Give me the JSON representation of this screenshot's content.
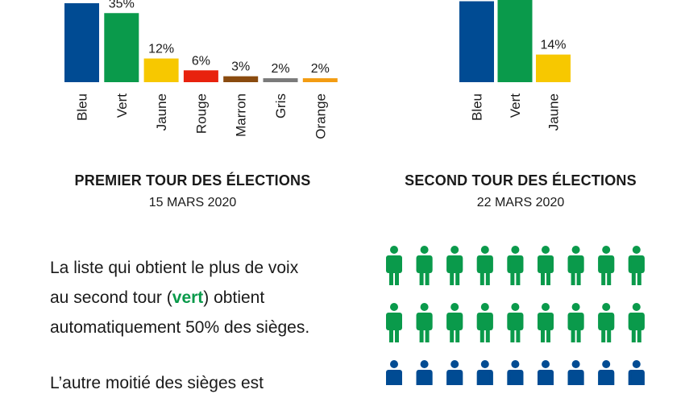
{
  "chart_data": [
    {
      "type": "bar",
      "categories": [
        "Bleu",
        "Vert",
        "Jaune",
        "Rouge",
        "Marron",
        "Gris",
        "Orange"
      ],
      "values": [
        40,
        35,
        12,
        6,
        3,
        2,
        2
      ],
      "labels": [
        "",
        "35%",
        "12%",
        "6%",
        "3%",
        "2%",
        "2%"
      ],
      "colors": [
        "#004b93",
        "#0a9a4b",
        "#f7c800",
        "#e8220e",
        "#8a4b0f",
        "#7a7a7a",
        "#f39c12"
      ],
      "title": "PREMIER TOUR DES ÉLECTIONS",
      "subtitle": "15 MARS 2020"
    },
    {
      "type": "bar",
      "categories": [
        "Bleu",
        "Vert",
        "Jaune"
      ],
      "values": [
        41,
        45,
        14
      ],
      "labels": [
        "",
        "",
        "14%"
      ],
      "colors": [
        "#004b93",
        "#0a9a4b",
        "#f7c800"
      ],
      "title": "SECOND TOUR DES ÉLECTIONS",
      "subtitle": "22 MARS 2020"
    }
  ],
  "people": {
    "rows": [
      {
        "color": "#0a9a4b",
        "count": 9
      },
      {
        "color": "#0a9a4b",
        "count": 9
      },
      {
        "color": "#004b93",
        "count": 9
      }
    ]
  },
  "text": {
    "line1": "La liste qui obtient le plus de voix",
    "line2_a": "au second  tour (",
    "line2_hl": "vert",
    "line2_b": ") obtient",
    "line3": "automatiquement 50% des sièges.",
    "para2": "L’autre moitié des sièges est",
    "highlight_color": "#0a9a4b"
  }
}
